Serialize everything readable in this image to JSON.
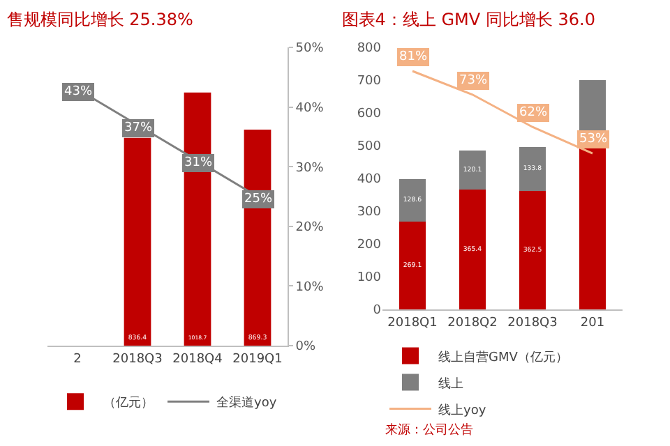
{
  "chart_data": [
    {
      "type": "bar",
      "title": "售规模同比增长 25.38%",
      "categories": [
        "2",
        "2018Q3",
        "2018Q4",
        "2019Q1"
      ],
      "ylim": [
        0,
        1200
      ],
      "y2lim": [
        0,
        50
      ],
      "y2ticks": [
        {
          "value": 0,
          "label": "0%"
        },
        {
          "value": 10,
          "label": "10%"
        },
        {
          "value": 20,
          "label": "20%"
        },
        {
          "value": 30,
          "label": "30%"
        },
        {
          "value": 40,
          "label": "40%"
        },
        {
          "value": 50,
          "label": "50%"
        }
      ],
      "tick_labels": "x",
      "legend": "bottom",
      "grid": false,
      "series": [
        {
          "name": "（亿元）",
          "color": "#c00000",
          "values": [
            null,
            836.4,
            1018.7,
            869.3
          ],
          "value_labels": [
            null,
            "836.4",
            "1018.7",
            "869.3"
          ]
        },
        {
          "type": "line",
          "name": "全渠道yoy",
          "color": "#7f7f7f",
          "axis": "y2",
          "values": [
            43,
            37,
            31,
            25
          ],
          "value_labels": [
            "43%",
            "37%",
            "31%",
            "25%"
          ]
        }
      ]
    },
    {
      "type": "bar",
      "title": "图表4：线上 GMV 同比增长 36.0",
      "categories": [
        "2018Q1",
        "2018Q2",
        "2018Q3",
        "201"
      ],
      "ylim": [
        0,
        800
      ],
      "yticks": [
        0,
        100,
        200,
        300,
        400,
        500,
        600,
        700,
        800
      ],
      "stacked": true,
      "legend": "bottom",
      "grid": false,
      "annotations": [
        "来源：公司公告"
      ],
      "series": [
        {
          "name": "线上自营GMV（亿元）",
          "color": "#c00000",
          "values": [
            269.1,
            365.4,
            362.5,
            500
          ],
          "value_labels": [
            "269.1",
            "365.4",
            "362.5",
            null
          ]
        },
        {
          "name": "线上",
          "color": "#7f7f7f",
          "values": [
            128.6,
            120.1,
            133.8,
            200
          ],
          "value_labels": [
            "128.6",
            "120.1",
            "133.8",
            null
          ]
        },
        {
          "type": "line",
          "name": "线上yoy",
          "color": "#f4b183",
          "axis": "y2",
          "values": [
            81,
            73,
            62,
            53
          ],
          "value_labels": [
            "81%",
            "73%",
            "62%",
            "53%"
          ]
        }
      ]
    }
  ]
}
